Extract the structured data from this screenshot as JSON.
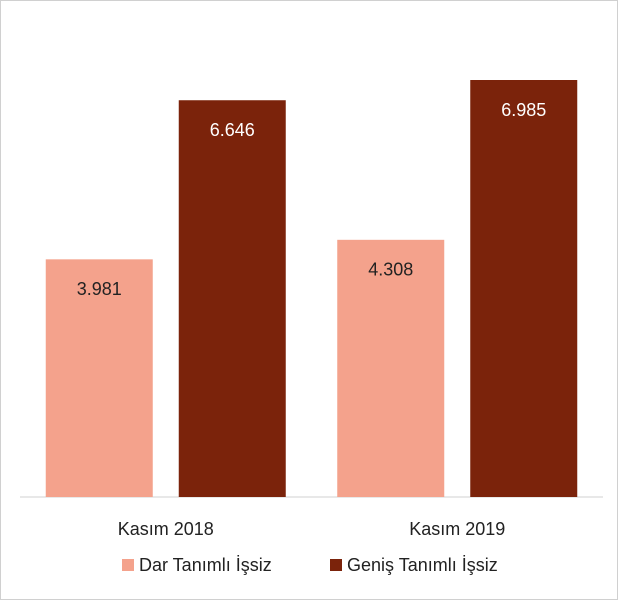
{
  "chart_data": {
    "type": "bar",
    "categories": [
      "Kasım 2018",
      "Kasım 2019"
    ],
    "series": [
      {
        "name": "Dar Tanımlı İşsiz",
        "color": "#f4a28c",
        "values": [
          3.981,
          4.308
        ]
      },
      {
        "name": "Geniş Tanımlı İşsiz",
        "color": "#7b230b",
        "values": [
          6.646,
          6.985
        ]
      }
    ],
    "legend": "bottom"
  }
}
